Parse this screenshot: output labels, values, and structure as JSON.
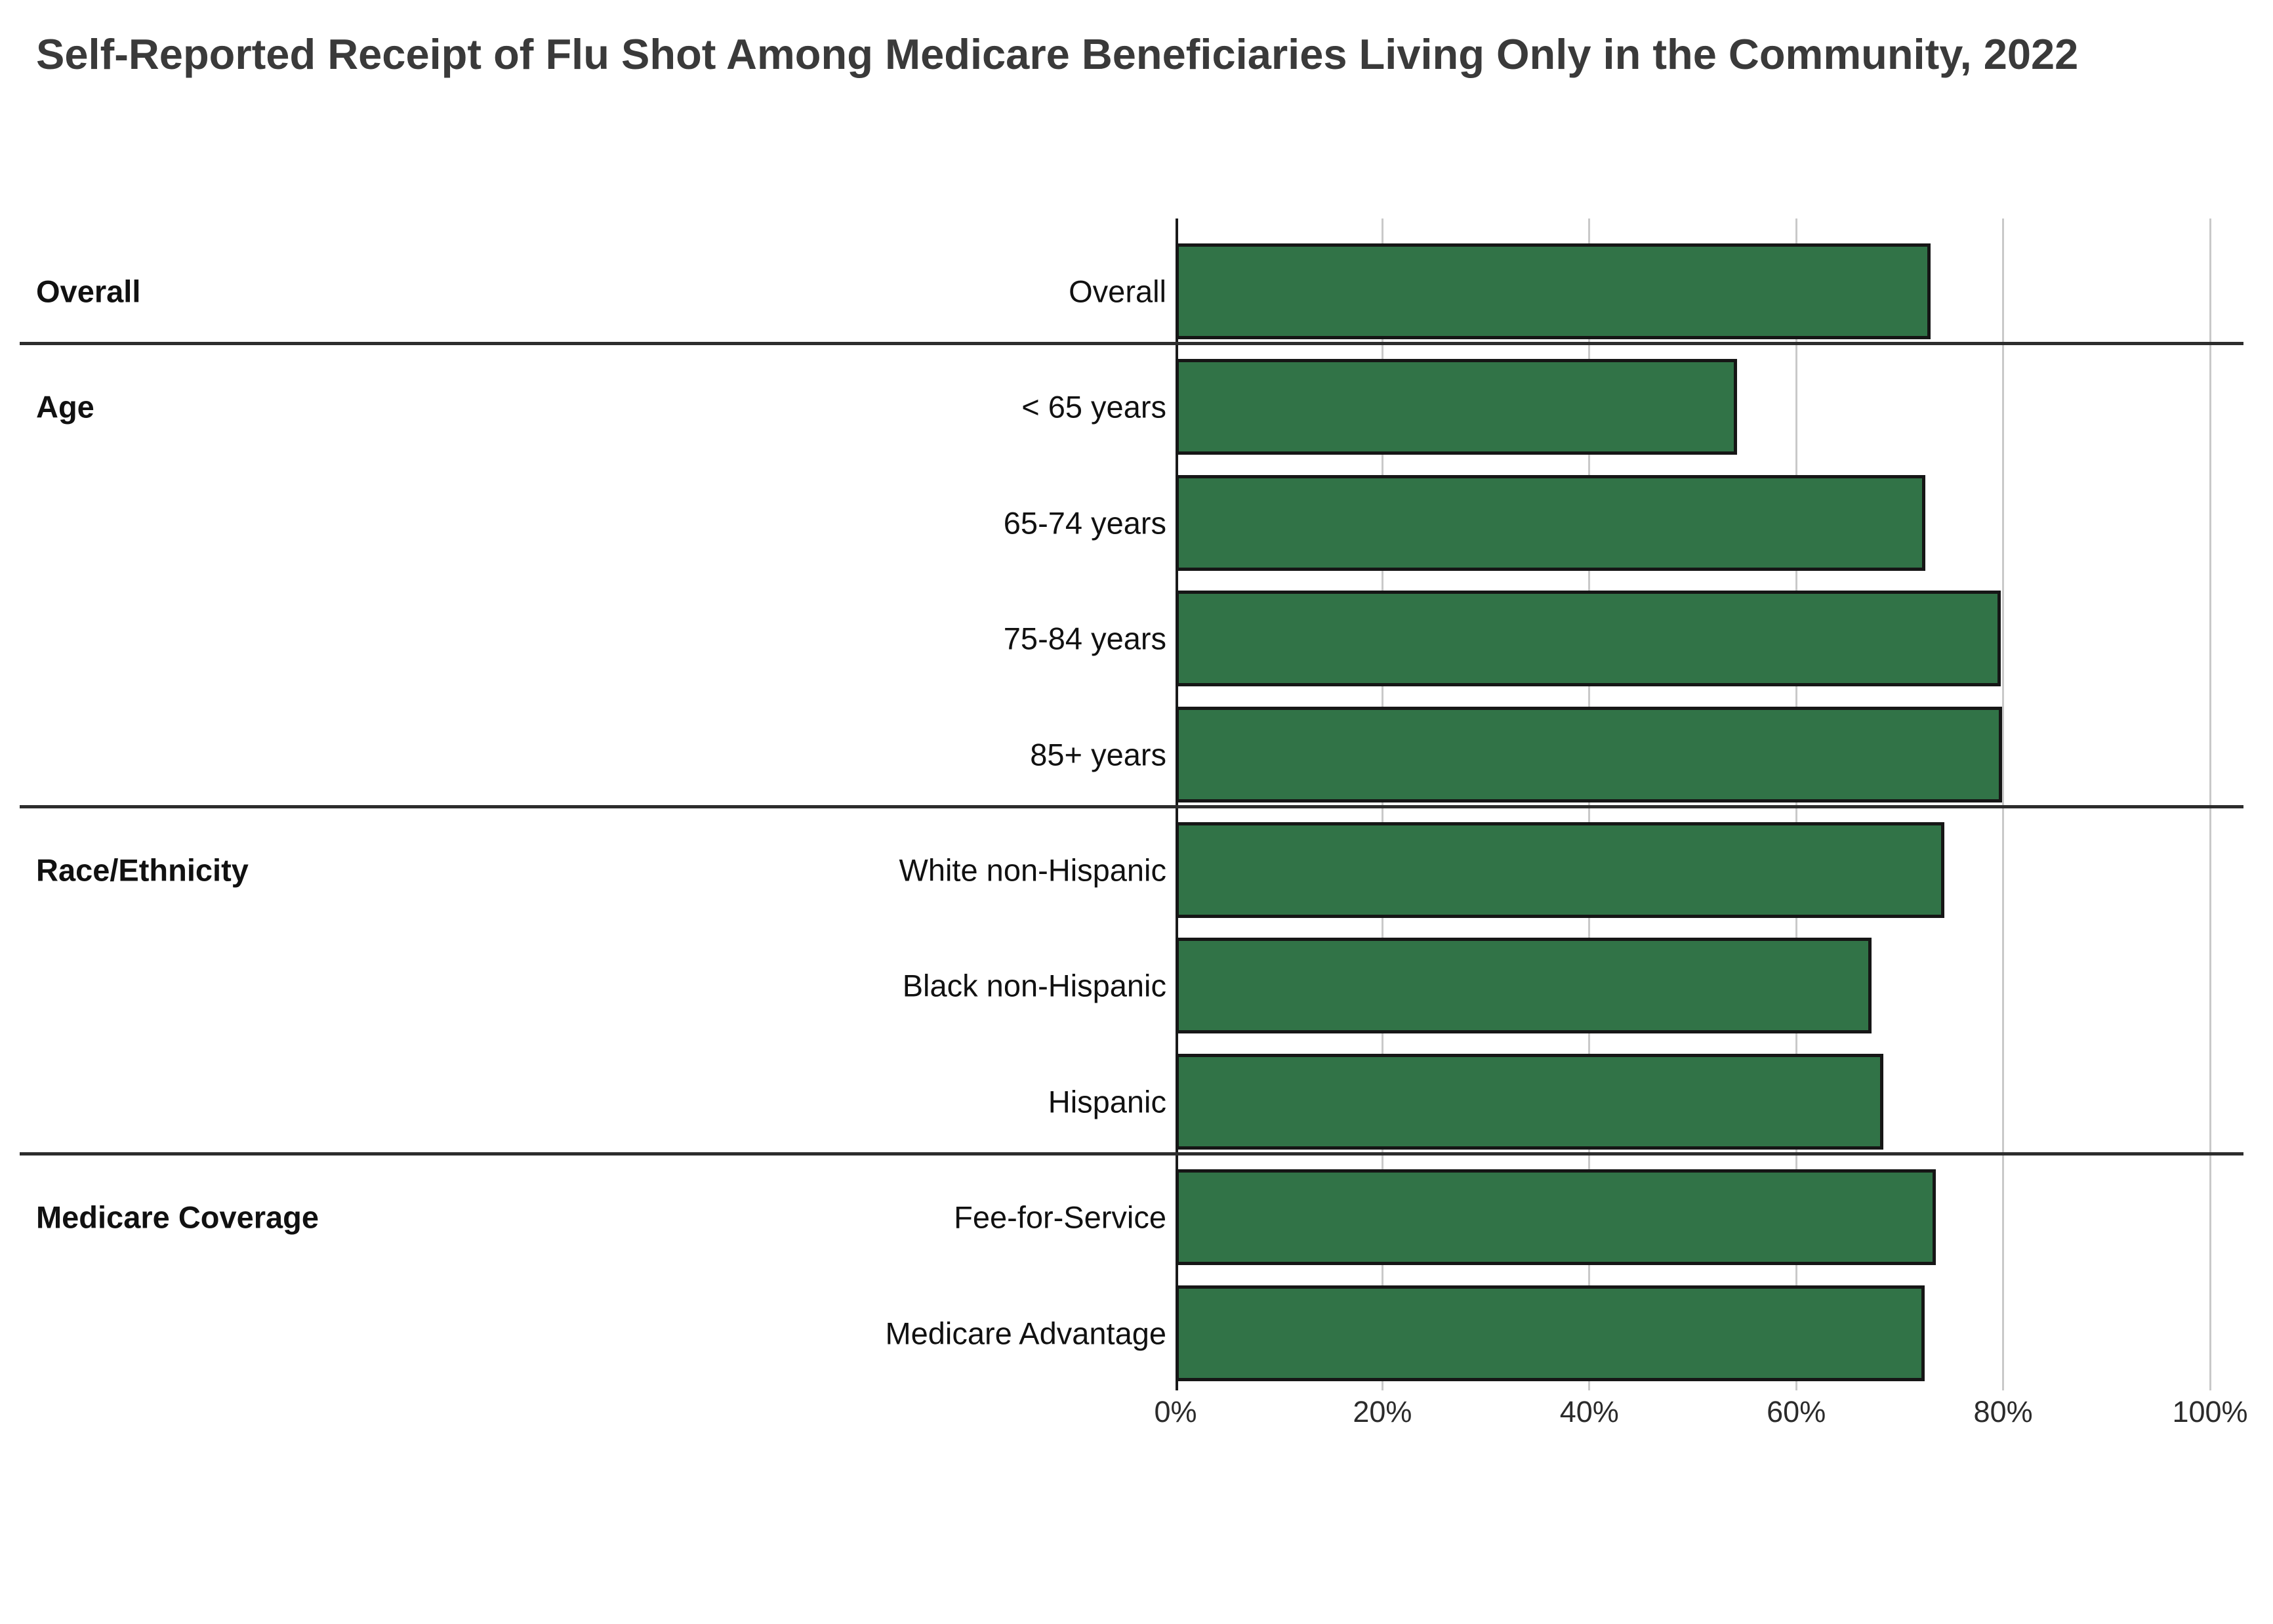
{
  "title": "Self-Reported Receipt of Flu Shot Among Medicare Beneficiaries Living Only in the Community, 2022",
  "chart_data": {
    "type": "bar",
    "orientation": "horizontal",
    "title": "Self-Reported Receipt of Flu Shot Among Medicare Beneficiaries Living Only in the Community, 2022",
    "xlabel": "",
    "ylabel": "",
    "xlim": [
      0,
      100
    ],
    "unit": "%",
    "grid": true,
    "x_ticks": [
      0,
      20,
      40,
      60,
      80,
      100
    ],
    "x_tick_labels": [
      "0%",
      "20%",
      "40%",
      "60%",
      "80%",
      "100%"
    ],
    "groups": [
      {
        "label": "Overall",
        "rows": [
          {
            "label": "Overall",
            "value": 73.0
          }
        ]
      },
      {
        "label": "Age",
        "rows": [
          {
            "label": "< 65 years",
            "value": 54.3
          },
          {
            "label": "65-74 years",
            "value": 72.5
          },
          {
            "label": "75-84 years",
            "value": 79.8
          },
          {
            "label": "85+ years",
            "value": 79.9
          }
        ]
      },
      {
        "label": "Race/Ethnicity",
        "rows": [
          {
            "label": "White non-Hispanic",
            "value": 74.3
          },
          {
            "label": "Black non-Hispanic",
            "value": 67.3
          },
          {
            "label": "Hispanic",
            "value": 68.4
          }
        ]
      },
      {
        "label": "Medicare Coverage",
        "rows": [
          {
            "label": "Fee-for-Service",
            "value": 73.5
          },
          {
            "label": "Medicare Advantage",
            "value": 72.4
          }
        ]
      }
    ],
    "colors": {
      "bar_fill": "#317347",
      "bar_border": "#161616",
      "gridline": "#c9c9c9",
      "axis": "#1a1a1a",
      "divider": "#2d2d2d",
      "title_text": "#3a3a3a",
      "label_text": "#111111",
      "tick_text": "#2b2b2b",
      "background": "#ffffff"
    }
  }
}
